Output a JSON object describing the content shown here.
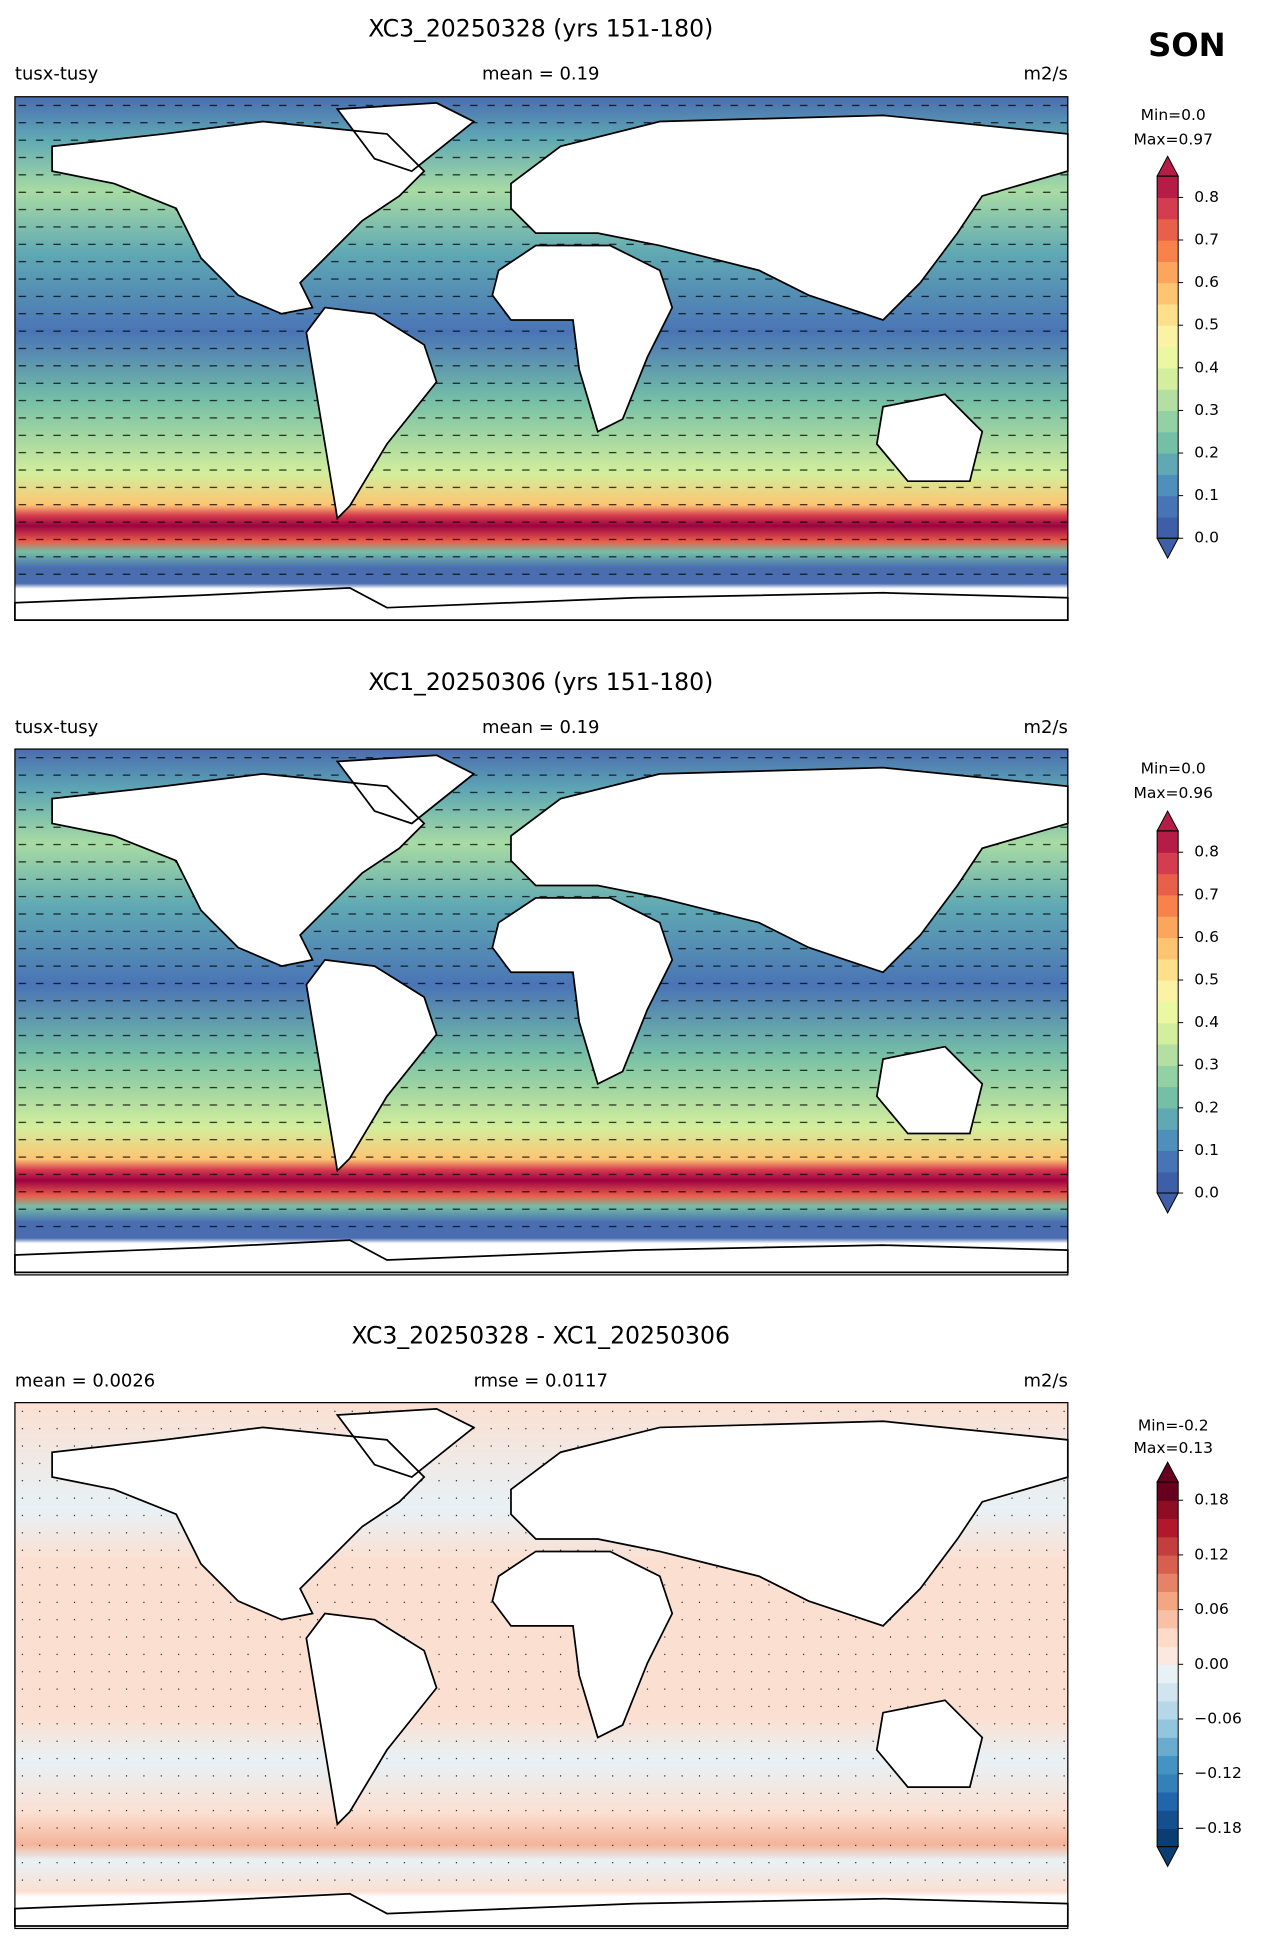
{
  "season": "SON",
  "panels": [
    {
      "title": "XC3_20250328 (yrs 151-180)",
      "left_label": "tusx-tusy",
      "center_label": "mean = 0.19",
      "right_label": "m2/s",
      "colorbar": {
        "min_label": "Min=0.0",
        "max_label": "Max=0.97",
        "lim": [
          0,
          0.85
        ],
        "ticks": [
          {
            "value": 0,
            "label": "0.0"
          },
          0.1,
          0.2,
          0.3,
          0.4,
          0.5,
          0.6,
          0.7,
          0.8
        ],
        "colors": [
          "#3f5ea8",
          "#4674b5",
          "#4f8fbb",
          "#5fa8b4",
          "#75bfa7",
          "#93d0a4",
          "#b3e0a2",
          "#d3ee9c",
          "#ecf7a2",
          "#fbf2a6",
          "#fedf8a",
          "#fdc572",
          "#fca55d",
          "#f7824b",
          "#e8604a",
          "#d43d4f",
          "#b51d47"
        ]
      }
    },
    {
      "title": "XC1_20250306 (yrs 151-180)",
      "left_label": "tusx-tusy",
      "center_label": "mean = 0.19",
      "right_label": "m2/s",
      "colorbar": {
        "min_label": "Min=0.0",
        "max_label": "Max=0.96",
        "lim": [
          0,
          0.85
        ],
        "ticks": [
          {
            "value": 0,
            "label": "0.0"
          },
          0.1,
          0.2,
          0.3,
          0.4,
          0.5,
          0.6,
          0.7,
          0.8
        ],
        "colors": [
          "#3f5ea8",
          "#4674b5",
          "#4f8fbb",
          "#5fa8b4",
          "#75bfa7",
          "#93d0a4",
          "#b3e0a2",
          "#d3ee9c",
          "#ecf7a2",
          "#fbf2a6",
          "#fedf8a",
          "#fdc572",
          "#fca55d",
          "#f7824b",
          "#e8604a",
          "#d43d4f",
          "#b51d47"
        ]
      }
    },
    {
      "title": "XC3_20250328 - XC1_20250306",
      "left_label": "mean = 0.0026",
      "center_label": "rmse = 0.0117",
      "right_label": "m2/s",
      "colorbar": {
        "min_label": "Min=-0.2",
        "max_label": "Max=0.13",
        "lim": [
          -0.2,
          0.2
        ],
        "ticks": [
          {
            "value": -0.18,
            "label": "−0.18"
          },
          {
            "value": -0.12,
            "label": "−0.12"
          },
          {
            "value": -0.06,
            "label": "−0.06"
          },
          {
            "value": 0,
            "label": "0.00"
          },
          0.06,
          0.12,
          0.18
        ],
        "colors": [
          "#0a3d74",
          "#154f8f",
          "#2166ac",
          "#3480b9",
          "#4393c3",
          "#6aacd0",
          "#92c5de",
          "#b6d7e8",
          "#d1e5f0",
          "#e8f1f6",
          "#fbe8df",
          "#fddbc7",
          "#f8c0a6",
          "#f4a582",
          "#e58268",
          "#d6604d",
          "#c23f3d",
          "#b2182b",
          "#8d0d25",
          "#67001f"
        ]
      }
    }
  ]
}
